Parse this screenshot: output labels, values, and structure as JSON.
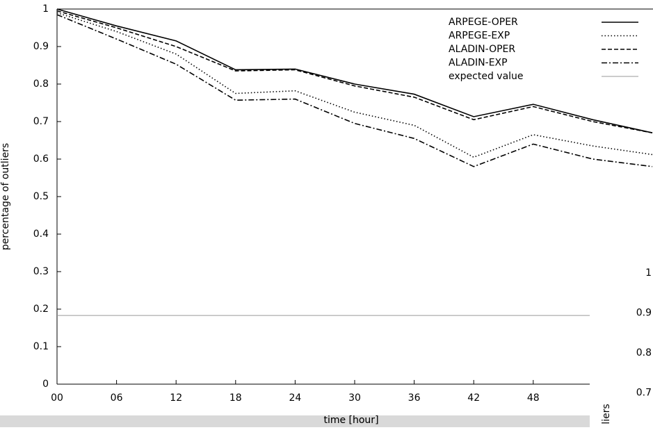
{
  "chart_data": {
    "type": "line",
    "xlabel": "time [hour]",
    "ylabel": "percentage of outliers",
    "x": [
      0,
      6,
      12,
      18,
      24,
      30,
      36,
      42,
      48,
      54,
      60
    ],
    "xlim": [
      0,
      60
    ],
    "xticks": [
      {
        "value": 0,
        "label": "00"
      },
      {
        "value": 6,
        "label": "06"
      },
      {
        "value": 12,
        "label": "12"
      },
      {
        "value": 18,
        "label": "18"
      },
      {
        "value": 24,
        "label": "24"
      },
      {
        "value": 30,
        "label": "30"
      },
      {
        "value": 36,
        "label": "36"
      },
      {
        "value": 42,
        "label": "42"
      },
      {
        "value": 48,
        "label": "48"
      }
    ],
    "ylim": [
      0,
      1
    ],
    "yticks": [
      0,
      0.1,
      0.2,
      0.3,
      0.4,
      0.5,
      0.6,
      0.7,
      0.8,
      0.9,
      1
    ],
    "legend": "upper right",
    "series": [
      {
        "name": "ARPEGE-OPER",
        "color": "#000000",
        "dash": "solid",
        "values": [
          1.0,
          0.955,
          0.915,
          0.838,
          0.84,
          0.8,
          0.773,
          0.713,
          0.746,
          0.705,
          0.67
        ]
      },
      {
        "name": "ARPEGE-EXP",
        "color": "#000000",
        "dash": "dotted",
        "values": [
          0.99,
          0.94,
          0.88,
          0.775,
          0.782,
          0.725,
          0.69,
          0.605,
          0.665,
          0.635,
          0.612
        ]
      },
      {
        "name": "ALADIN-OPER",
        "color": "#000000",
        "dash": "dashed",
        "values": [
          0.995,
          0.95,
          0.9,
          0.835,
          0.838,
          0.795,
          0.765,
          0.705,
          0.74,
          0.7,
          0.67
        ]
      },
      {
        "name": "ALADIN-EXP",
        "color": "#000000",
        "dash": "dashdot",
        "values": [
          0.985,
          0.92,
          0.853,
          0.757,
          0.76,
          0.695,
          0.655,
          0.58,
          0.64,
          0.6,
          0.58
        ]
      },
      {
        "name": "expected value",
        "color": "#999999",
        "dash": "solid",
        "values": [
          0.183,
          0.183,
          0.183,
          0.183,
          0.183,
          0.183,
          0.183,
          0.183,
          0.183,
          0.183,
          0.183
        ]
      }
    ]
  },
  "overlay": {
    "ticks": [
      "1",
      "0.9",
      "0.8",
      "0.7"
    ],
    "axis_label": "liers"
  }
}
